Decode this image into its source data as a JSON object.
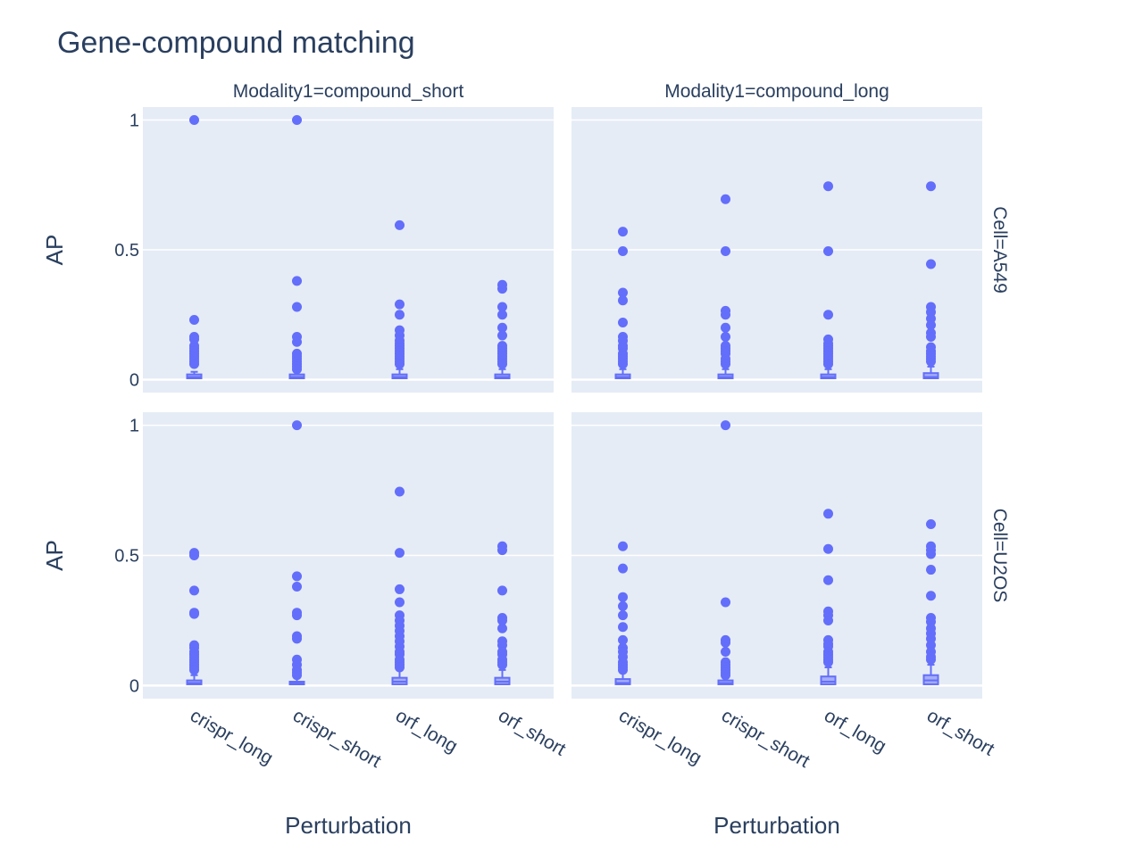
{
  "title": "Gene-compound matching",
  "colors": {
    "marker": "#636efa",
    "panel_bg": "#e5ecf6",
    "grid": "#ffffff",
    "text": "#2a3f5f"
  },
  "chart_data": {
    "type": "box",
    "title": "Gene-compound matching",
    "categories": [
      "crispr_long",
      "crispr_short",
      "orf_long",
      "orf_short"
    ],
    "xlabel": "Perturbation",
    "ylabel": "AP",
    "ylim": [
      -0.05,
      1.05
    ],
    "yticks": [
      0,
      0.5,
      1
    ],
    "ytick_labels": [
      "0",
      "0.5",
      "1"
    ],
    "grid": true,
    "column_facets": [
      "Modality1=compound_short",
      "Modality1=compound_long"
    ],
    "row_facets": [
      "Cell=A549",
      "Cell=U2OS"
    ],
    "panels": [
      {
        "row": "Cell=A549",
        "col": "Modality1=compound_short",
        "boxes": [
          {
            "category": "crispr_long",
            "q1": 0.005,
            "median": 0.01,
            "q3": 0.02,
            "upper_fence": 0.03,
            "outliers": [
              1.0,
              0.23,
              0.165,
              0.155,
              0.13,
              0.12,
              0.11,
              0.1,
              0.09,
              0.08,
              0.07,
              0.06
            ]
          },
          {
            "category": "crispr_short",
            "q1": 0.005,
            "median": 0.01,
            "q3": 0.02,
            "upper_fence": 0.03,
            "outliers": [
              1.0,
              0.38,
              0.28,
              0.165,
              0.145,
              0.1,
              0.09,
              0.08,
              0.07,
              0.06,
              0.05,
              0.04
            ]
          },
          {
            "category": "orf_long",
            "q1": 0.005,
            "median": 0.01,
            "q3": 0.02,
            "upper_fence": 0.04,
            "outliers": [
              0.595,
              0.29,
              0.25,
              0.19,
              0.17,
              0.15,
              0.14,
              0.13,
              0.12,
              0.11,
              0.1,
              0.09,
              0.08,
              0.07,
              0.06
            ]
          },
          {
            "category": "orf_short",
            "q1": 0.005,
            "median": 0.01,
            "q3": 0.02,
            "upper_fence": 0.04,
            "outliers": [
              0.365,
              0.35,
              0.28,
              0.25,
              0.2,
              0.17,
              0.13,
              0.12,
              0.11,
              0.1,
              0.09,
              0.08,
              0.07,
              0.06
            ]
          }
        ]
      },
      {
        "row": "Cell=A549",
        "col": "Modality1=compound_long",
        "boxes": [
          {
            "category": "crispr_long",
            "q1": 0.005,
            "median": 0.01,
            "q3": 0.02,
            "upper_fence": 0.04,
            "outliers": [
              0.57,
              0.495,
              0.335,
              0.305,
              0.22,
              0.165,
              0.15,
              0.13,
              0.12,
              0.1,
              0.09,
              0.08,
              0.07,
              0.06
            ]
          },
          {
            "category": "crispr_short",
            "q1": 0.005,
            "median": 0.01,
            "q3": 0.02,
            "upper_fence": 0.04,
            "outliers": [
              0.695,
              0.495,
              0.265,
              0.25,
              0.2,
              0.165,
              0.13,
              0.12,
              0.11,
              0.1,
              0.08,
              0.07,
              0.06
            ]
          },
          {
            "category": "orf_long",
            "q1": 0.005,
            "median": 0.01,
            "q3": 0.02,
            "upper_fence": 0.04,
            "outliers": [
              0.745,
              0.495,
              0.25,
              0.155,
              0.14,
              0.13,
              0.12,
              0.11,
              0.1,
              0.09,
              0.08,
              0.07,
              0.06
            ]
          },
          {
            "category": "orf_short",
            "q1": 0.005,
            "median": 0.01,
            "q3": 0.025,
            "upper_fence": 0.05,
            "outliers": [
              0.745,
              0.445,
              0.28,
              0.26,
              0.235,
              0.21,
              0.18,
              0.165,
              0.125,
              0.11,
              0.1,
              0.09,
              0.08,
              0.07
            ]
          }
        ]
      },
      {
        "row": "Cell=U2OS",
        "col": "Modality1=compound_short",
        "boxes": [
          {
            "category": "crispr_long",
            "q1": 0.005,
            "median": 0.01,
            "q3": 0.02,
            "upper_fence": 0.04,
            "outliers": [
              0.51,
              0.5,
              0.365,
              0.28,
              0.275,
              0.155,
              0.145,
              0.13,
              0.12,
              0.11,
              0.1,
              0.09,
              0.08,
              0.07,
              0.06
            ]
          },
          {
            "category": "crispr_short",
            "q1": 0.005,
            "median": 0.01,
            "q3": 0.015,
            "upper_fence": 0.03,
            "outliers": [
              1.0,
              0.42,
              0.38,
              0.28,
              0.27,
              0.19,
              0.18,
              0.1,
              0.08,
              0.06,
              0.05,
              0.04
            ]
          },
          {
            "category": "orf_long",
            "q1": 0.005,
            "median": 0.015,
            "q3": 0.03,
            "upper_fence": 0.06,
            "outliers": [
              0.745,
              0.51,
              0.37,
              0.32,
              0.27,
              0.25,
              0.23,
              0.21,
              0.19,
              0.17,
              0.15,
              0.13,
              0.12,
              0.1,
              0.09,
              0.08,
              0.07
            ]
          },
          {
            "category": "orf_short",
            "q1": 0.005,
            "median": 0.015,
            "q3": 0.03,
            "upper_fence": 0.06,
            "outliers": [
              0.535,
              0.52,
              0.365,
              0.26,
              0.25,
              0.22,
              0.17,
              0.155,
              0.13,
              0.12,
              0.1,
              0.09,
              0.08
            ]
          }
        ]
      },
      {
        "row": "Cell=U2OS",
        "col": "Modality1=compound_long",
        "boxes": [
          {
            "category": "crispr_long",
            "q1": 0.005,
            "median": 0.01,
            "q3": 0.025,
            "upper_fence": 0.05,
            "outliers": [
              0.535,
              0.45,
              0.34,
              0.305,
              0.27,
              0.225,
              0.175,
              0.145,
              0.13,
              0.11,
              0.09,
              0.08,
              0.07,
              0.06
            ]
          },
          {
            "category": "crispr_short",
            "q1": 0.005,
            "median": 0.01,
            "q3": 0.02,
            "upper_fence": 0.03,
            "outliers": [
              1.0,
              0.32,
              0.175,
              0.165,
              0.13,
              0.09,
              0.08,
              0.07,
              0.06,
              0.05,
              0.04
            ]
          },
          {
            "category": "orf_long",
            "q1": 0.005,
            "median": 0.015,
            "q3": 0.035,
            "upper_fence": 0.07,
            "outliers": [
              0.66,
              0.525,
              0.405,
              0.285,
              0.27,
              0.25,
              0.175,
              0.16,
              0.15,
              0.13,
              0.12,
              0.11,
              0.1,
              0.09
            ]
          },
          {
            "category": "orf_short",
            "q1": 0.005,
            "median": 0.02,
            "q3": 0.04,
            "upper_fence": 0.08,
            "outliers": [
              0.62,
              0.535,
              0.52,
              0.505,
              0.445,
              0.345,
              0.26,
              0.245,
              0.22,
              0.2,
              0.18,
              0.155,
              0.13,
              0.11,
              0.1
            ]
          }
        ]
      }
    ]
  }
}
